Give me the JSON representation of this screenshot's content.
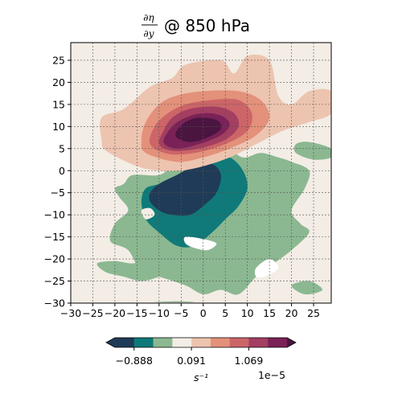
{
  "chart_data": {
    "type": "heatmap",
    "title": {
      "numerator": "∂η",
      "denominator": "∂y",
      "suffix": "@ 850 hPa"
    },
    "xlim": [
      -30,
      29
    ],
    "ylim": [
      -30,
      29
    ],
    "x_ticks": [
      -30,
      -25,
      -20,
      -15,
      -10,
      -5,
      0,
      5,
      10,
      15,
      20,
      25
    ],
    "y_ticks": [
      -30,
      -25,
      -20,
      -15,
      -10,
      -5,
      0,
      5,
      10,
      15,
      20,
      25
    ],
    "grid": true,
    "background_color": "#f3ede6",
    "levels": [
      -0.888,
      -0.479,
      -0.07,
      0.091,
      0.5,
      0.909,
      1.069
    ],
    "colormap": [
      "#1f3b57",
      "#0f7a79",
      "#8bb891",
      "#f3ede6",
      "#edc4b0",
      "#e3917a",
      "#cc6568",
      "#a33f61",
      "#7a2257",
      "#4a1540"
    ],
    "colorbar": {
      "tick_labels": [
        "−0.888",
        "0.091",
        "1.069"
      ],
      "unit_label": "s⁻¹",
      "offset_label": "1e−5",
      "colors": [
        "#1f3b57",
        "#0f7a79",
        "#8bb891",
        "#f3ede6",
        "#edc4b0",
        "#e3917a",
        "#cc6568",
        "#a33f61",
        "#7a2257"
      ]
    },
    "positive_lobe": {
      "center": [
        2,
        10
      ],
      "regions": [
        {
          "level": 1,
          "color": "#edc4b0",
          "points": [
            [
              -23,
              7
            ],
            [
              -22,
              4.5
            ],
            [
              -15,
              1
            ],
            [
              -10,
              0
            ],
            [
              -5,
              0
            ],
            [
              0,
              1
            ],
            [
              6,
              3
            ],
            [
              12,
              6
            ],
            [
              18,
              9
            ],
            [
              24,
              11
            ],
            [
              29,
              13
            ],
            [
              29,
              18
            ],
            [
              24,
              18
            ],
            [
              20,
              15
            ],
            [
              17,
              17
            ],
            [
              15,
              25
            ],
            [
              10,
              26
            ],
            [
              7,
              22
            ],
            [
              4,
              25
            ],
            [
              -4,
              24
            ],
            [
              -7,
              21
            ],
            [
              -12,
              19
            ],
            [
              -18,
              14
            ],
            [
              -23,
              12
            ]
          ]
        },
        {
          "level": 2,
          "color": "#e3917a",
          "points": [
            [
              -14,
              7
            ],
            [
              -13,
              4
            ],
            [
              -6,
              2
            ],
            [
              0,
              3
            ],
            [
              6,
              5
            ],
            [
              12,
              8
            ],
            [
              15,
              12
            ],
            [
              13,
              16
            ],
            [
              8,
              18
            ],
            [
              0,
              18
            ],
            [
              -6,
              17
            ],
            [
              -10,
              15
            ],
            [
              -13,
              11
            ]
          ]
        },
        {
          "level": 3,
          "color": "#cc6568",
          "points": [
            [
              -12,
              6
            ],
            [
              -8,
              3.8
            ],
            [
              -2,
              4
            ],
            [
              5,
              6
            ],
            [
              10,
              9
            ],
            [
              11,
              13
            ],
            [
              8,
              16
            ],
            [
              2,
              16
            ],
            [
              -4,
              15
            ],
            [
              -8,
              13
            ],
            [
              -11,
              10
            ]
          ]
        },
        {
          "level": 4,
          "color": "#a33f61",
          "points": [
            [
              -10,
              6
            ],
            [
              -7,
              4.5
            ],
            [
              -1,
              5
            ],
            [
              5,
              7
            ],
            [
              8,
              10
            ],
            [
              7,
              13
            ],
            [
              3,
              14.5
            ],
            [
              -3,
              14
            ],
            [
              -7,
              12
            ],
            [
              -9,
              9
            ]
          ]
        },
        {
          "level": 5,
          "color": "#7a2257",
          "points": [
            [
              -9,
              6.5
            ],
            [
              -6,
              5
            ],
            [
              -1,
              6
            ],
            [
              4,
              8
            ],
            [
              6,
              10.5
            ],
            [
              4,
              12.5
            ],
            [
              0,
              13
            ],
            [
              -4,
              12
            ],
            [
              -7,
              10
            ]
          ]
        },
        {
          "level": 6,
          "color": "#4a1540",
          "points": [
            [
              -6,
              7.5
            ],
            [
              -3,
              6.5
            ],
            [
              1,
              7.5
            ],
            [
              4,
              9.5
            ],
            [
              3,
              11.5
            ],
            [
              -1,
              12
            ],
            [
              -4,
              11
            ],
            [
              -6,
              9
            ]
          ]
        }
      ]
    },
    "negative_lobe": {
      "center": [
        -3,
        -4
      ],
      "regions": [
        {
          "level": 1,
          "color": "#8bb891",
          "points": [
            [
              -18,
              -3
            ],
            [
              -16,
              -1
            ],
            [
              -10,
              -1
            ],
            [
              -7,
              1
            ],
            [
              -3,
              2
            ],
            [
              1,
              5
            ],
            [
              5,
              5.5
            ],
            [
              9,
              3
            ],
            [
              13,
              4
            ],
            [
              17,
              3
            ],
            [
              20,
              2
            ],
            [
              24,
              0
            ],
            [
              23,
              -4
            ],
            [
              20,
              -9
            ],
            [
              22,
              -12
            ],
            [
              24,
              -14
            ],
            [
              20,
              -18
            ],
            [
              16,
              -21
            ],
            [
              12,
              -24
            ],
            [
              8,
              -28
            ],
            [
              4,
              -27
            ],
            [
              0,
              -28
            ],
            [
              -4,
              -26
            ],
            [
              -10,
              -24
            ],
            [
              -14,
              -23
            ],
            [
              -17,
              -18
            ],
            [
              -21,
              -16
            ],
            [
              -20,
              -12
            ],
            [
              -17,
              -9
            ],
            [
              -19,
              -6
            ],
            [
              -20,
              -4
            ]
          ]
        },
        {
          "level": 2,
          "color": "#0f7a79",
          "points": [
            [
              -14,
              -7
            ],
            [
              -13,
              -4
            ],
            [
              -10,
              -3
            ],
            [
              -6,
              -1
            ],
            [
              -2,
              1
            ],
            [
              2,
              3
            ],
            [
              6,
              3
            ],
            [
              9,
              0
            ],
            [
              10,
              -4
            ],
            [
              8,
              -8
            ],
            [
              5,
              -11
            ],
            [
              2,
              -14
            ],
            [
              -2,
              -17
            ],
            [
              -6,
              -17
            ],
            [
              -10,
              -14
            ],
            [
              -13,
              -11
            ]
          ]
        },
        {
          "level": 3,
          "color": "#1f3b57",
          "points": [
            [
              -12,
              -5
            ],
            [
              -10,
              -3
            ],
            [
              -6,
              -1
            ],
            [
              -2,
              1
            ],
            [
              2,
              1.5
            ],
            [
              4,
              -1
            ],
            [
              3,
              -5
            ],
            [
              0,
              -8
            ],
            [
              -3,
              -10
            ],
            [
              -7,
              -10
            ],
            [
              -10,
              -9
            ],
            [
              -12,
              -7
            ]
          ]
        }
      ]
    },
    "side_patches": [
      {
        "color": "#8bb891",
        "points": [
          [
            21,
            6
          ],
          [
            24,
            6.5
          ],
          [
            29,
            5
          ],
          [
            29,
            3
          ],
          [
            25,
            2.5
          ],
          [
            21,
            4
          ]
        ]
      },
      {
        "color": "#8bb891",
        "points": [
          [
            -24,
            -21
          ],
          [
            -20,
            -20.5
          ],
          [
            -16,
            -21
          ],
          [
            -12,
            -20
          ],
          [
            -8,
            -21
          ],
          [
            -6,
            -22
          ],
          [
            -10,
            -24
          ],
          [
            -14,
            -25
          ],
          [
            -18,
            -24
          ],
          [
            -22,
            -23
          ]
        ]
      },
      {
        "color": "#8bb891",
        "points": [
          [
            -8,
            -23
          ],
          [
            -4,
            -21.5
          ],
          [
            -2,
            -23
          ],
          [
            -6,
            -25
          ]
        ]
      },
      {
        "color": "#8bb891",
        "points": [
          [
            20,
            -26
          ],
          [
            24,
            -25
          ],
          [
            27,
            -27
          ],
          [
            23,
            -28
          ]
        ]
      },
      {
        "color": "#8bb891",
        "points": [
          [
            -11,
            -29.8
          ],
          [
            -6,
            -29.6
          ],
          [
            -2,
            -29.8
          ]
        ]
      },
      {
        "color": "#ffffff",
        "points": [
          [
            -4,
            -15
          ],
          [
            0,
            -15.5
          ],
          [
            3,
            -16.5
          ],
          [
            1,
            -18
          ],
          [
            -2,
            -17.5
          ],
          [
            -4,
            -16.5
          ]
        ]
      },
      {
        "color": "#ffffff",
        "points": [
          [
            12,
            -22
          ],
          [
            15,
            -20
          ],
          [
            17,
            -22
          ],
          [
            14,
            -24
          ],
          [
            12,
            -24
          ]
        ]
      },
      {
        "color": "#f3ede6",
        "points": [
          [
            -14,
            -9
          ],
          [
            -12,
            -8.5
          ],
          [
            -11,
            -10
          ],
          [
            -13,
            -11
          ]
        ]
      }
    ]
  }
}
